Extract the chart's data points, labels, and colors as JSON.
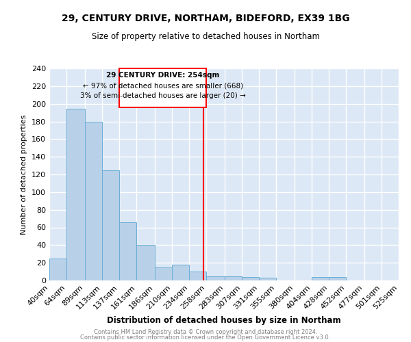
{
  "title": "29, CENTURY DRIVE, NORTHAM, BIDEFORD, EX39 1BG",
  "subtitle": "Size of property relative to detached houses in Northam",
  "xlabel": "Distribution of detached houses by size in Northam",
  "ylabel": "Number of detached properties",
  "bar_color": "#b8d0e8",
  "bar_edge_color": "#6baed6",
  "background_color": "#dce8f5",
  "grid_color": "#ffffff",
  "vline_x": 254,
  "vline_color": "red",
  "bins": [
    40,
    64,
    89,
    113,
    137,
    161,
    186,
    210,
    234,
    258,
    283,
    307,
    331,
    355,
    380,
    404,
    428,
    452,
    477,
    501,
    525
  ],
  "bin_labels": [
    "40sqm",
    "64sqm",
    "89sqm",
    "113sqm",
    "137sqm",
    "161sqm",
    "186sqm",
    "210sqm",
    "234sqm",
    "258sqm",
    "283sqm",
    "307sqm",
    "331sqm",
    "355sqm",
    "380sqm",
    "404sqm",
    "428sqm",
    "452sqm",
    "477sqm",
    "501sqm",
    "525sqm"
  ],
  "heights": [
    25,
    194,
    180,
    125,
    66,
    40,
    15,
    18,
    10,
    5,
    5,
    4,
    3,
    0,
    0,
    4,
    4,
    0,
    0,
    0,
    0
  ],
  "annotation_title": "29 CENTURY DRIVE: 254sqm",
  "annotation_line1": "← 97% of detached houses are smaller (668)",
  "annotation_line2": "3% of semi-detached houses are larger (20) →",
  "ylim": [
    0,
    240
  ],
  "yticks": [
    0,
    20,
    40,
    60,
    80,
    100,
    120,
    140,
    160,
    180,
    200,
    220,
    240
  ],
  "footer_line1": "Contains HM Land Registry data © Crown copyright and database right 2024.",
  "footer_line2": "Contains public sector information licensed under the Open Government Licence v3.0."
}
